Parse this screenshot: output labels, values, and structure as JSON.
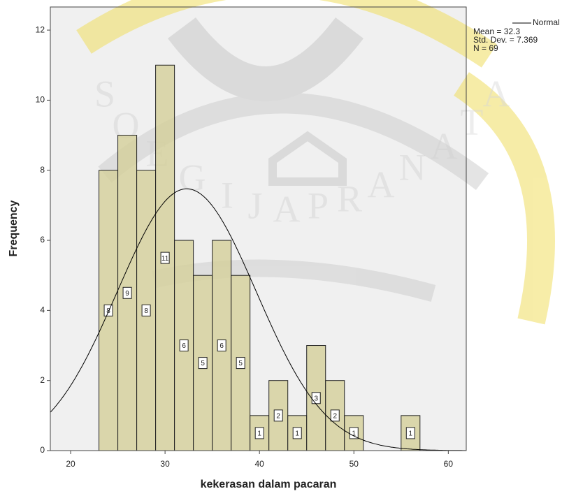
{
  "chart_data": {
    "type": "histogram",
    "x_label": "kekerasan dalam pacaran",
    "y_label": "Frequency",
    "bins": [
      23,
      25,
      27,
      29,
      31,
      33,
      35,
      37,
      39,
      41,
      43,
      45,
      47,
      49,
      51,
      53,
      55,
      57
    ],
    "values": [
      8,
      9,
      8,
      11,
      6,
      5,
      6,
      5,
      1,
      2,
      1,
      3,
      2,
      1,
      0,
      0,
      1
    ],
    "color": "#d4cf9a",
    "xlim": [
      17.85,
      61.9
    ],
    "xticks": [
      20,
      30,
      40,
      50,
      60
    ],
    "ylim": [
      0,
      12.66
    ],
    "yticks": [
      0,
      2,
      4,
      6,
      8,
      10,
      12
    ],
    "curve": {
      "name": "Normal",
      "color": "#000000"
    },
    "mean": {
      "value": 32.3,
      "label": "Mean = 32.3"
    },
    "std": {
      "value": 7.369,
      "label": "Std. Dev. = 7.369"
    },
    "n": {
      "value": 69,
      "label": "N = 69"
    },
    "watermark": [
      "S",
      "O",
      "E",
      "G",
      "I",
      "J",
      "A",
      "P",
      "R",
      "A",
      "N",
      "A",
      "T",
      "A"
    ]
  }
}
